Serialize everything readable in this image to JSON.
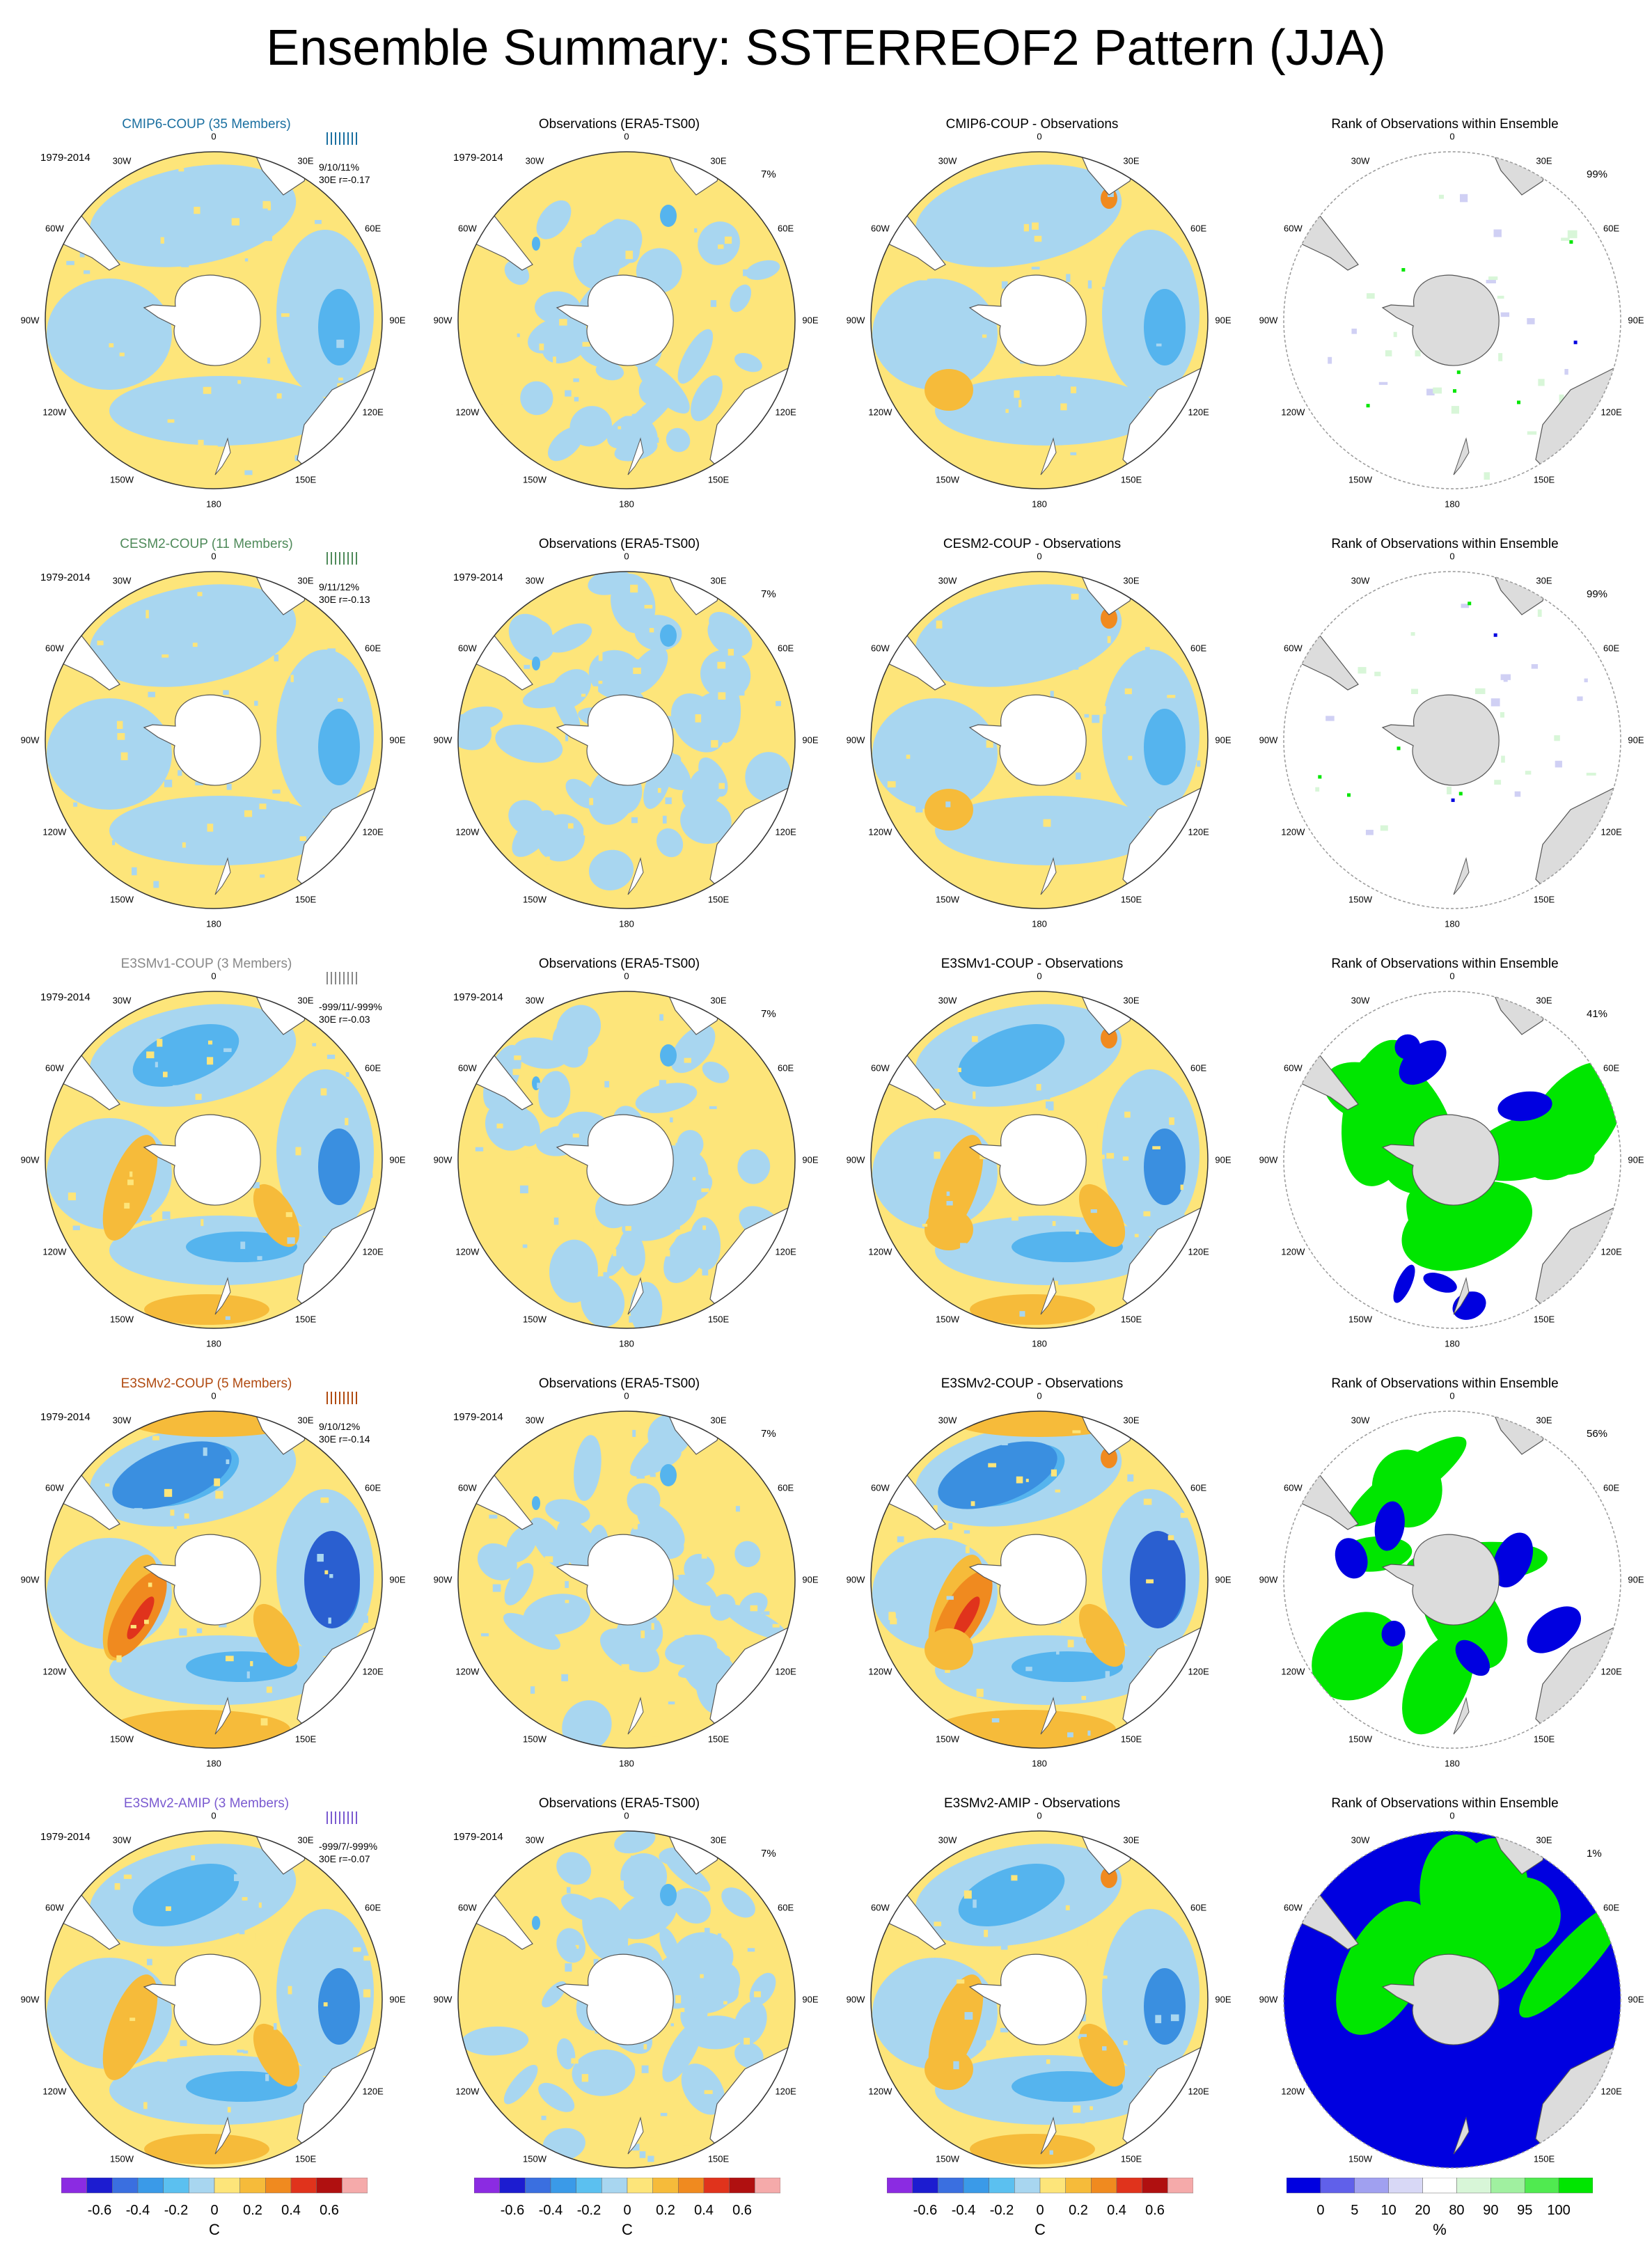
{
  "title": "Ensemble Summary: SSTERREOF2 Pattern (JJA)",
  "colors": {
    "yellow": "#fde57a",
    "light_blue": "#a8d6f0",
    "blue": "#55b4ee",
    "mid_blue": "#3a8fe0",
    "dark_blue": "#2a5fd0",
    "orange": "#f6bb3a",
    "dark_orange": "#f08a1f",
    "red": "#e0331c",
    "land": "#ffffff",
    "land_grey": "#dcdcdc",
    "rank_green": "#00e600",
    "rank_blue": "#0000e0",
    "rank_pale": "#d0d0f4"
  },
  "longitude_labels": [
    "0",
    "30E",
    "60E",
    "90E",
    "120E",
    "150E",
    "180",
    "150W",
    "120W",
    "90W",
    "60W",
    "30W"
  ],
  "rows": [
    {
      "model": "CMIP6-COUP (35 Members)",
      "model_color": "#1a6fa0",
      "period": "1979-2014",
      "stats1": "9/10/11%",
      "stats2": "30E    r=-0.17",
      "obs_title": "Observations (ERA5-TS00)",
      "obs_pct": "7%",
      "diff_title": "CMIP6-COUP - Observations",
      "rank_title": "Rank of Observations within Ensemble",
      "rank_pct": "99%",
      "rank_style": "sparse",
      "intensity": 1
    },
    {
      "model": "CESM2-COUP (11 Members)",
      "model_color": "#4f8a5a",
      "period": "1979-2014",
      "stats1": "9/11/12%",
      "stats2": "30E    r=-0.13",
      "obs_title": "Observations (ERA5-TS00)",
      "obs_pct": "7%",
      "diff_title": "CESM2-COUP - Observations",
      "rank_title": "Rank of Observations within Ensemble",
      "rank_pct": "99%",
      "rank_style": "sparse",
      "intensity": 1
    },
    {
      "model": "E3SMv1-COUP (3 Members)",
      "model_color": "#888888",
      "period": "1979-2014",
      "stats1": "-999/11/-999%",
      "stats2": "30E r=-0.03",
      "obs_title": "Observations (ERA5-TS00)",
      "obs_pct": "7%",
      "diff_title": "E3SMv1-COUP - Observations",
      "rank_title": "Rank of Observations within Ensemble",
      "rank_pct": "41%",
      "rank_style": "green",
      "intensity": 2
    },
    {
      "model": "E3SMv2-COUP (5 Members)",
      "model_color": "#b04a10",
      "period": "1979-2014",
      "stats1": "9/10/12%",
      "stats2": "30E    r=-0.14",
      "obs_title": "Observations (ERA5-TS00)",
      "obs_pct": "7%",
      "diff_title": "E3SMv2-COUP - Observations",
      "rank_title": "Rank of Observations within Ensemble",
      "rank_pct": "56%",
      "rank_style": "mixed",
      "intensity": 3
    },
    {
      "model": "E3SMv2-AMIP (3 Members)",
      "model_color": "#7a5ad0",
      "period": "1979-2014",
      "stats1": "-999/7/-999%",
      "stats2": "30E    r=-0.07",
      "obs_title": "Observations (ERA5-TS00)",
      "obs_pct": "7%",
      "diff_title": "E3SMv2-AMIP - Observations",
      "rank_title": "Rank of Observations within Ensemble",
      "rank_pct": "1%",
      "rank_style": "blue",
      "intensity": 2
    }
  ],
  "colorbar_sst": {
    "unit": "C",
    "labels": [
      "-0.6",
      "-0.4",
      "-0.2",
      "0",
      "0.2",
      "0.4",
      "0.6"
    ],
    "colors": [
      "#8b2be2",
      "#1c1cd0",
      "#3a6fe0",
      "#3a9ae8",
      "#5bc0f0",
      "#a8d6f0",
      "#fde57a",
      "#f6bb3a",
      "#f08a1f",
      "#e0331c",
      "#b01010",
      "#f5aaaa"
    ]
  },
  "colorbar_rank": {
    "unit": "%",
    "labels": [
      "0",
      "5",
      "10",
      "20",
      "80",
      "90",
      "95",
      "100"
    ],
    "colors": [
      "#0000e0",
      "#6060ea",
      "#a0a0f0",
      "#d8d8f6",
      "#ffffff",
      "#d8f6d8",
      "#a0f0a0",
      "#50ea50",
      "#00e600"
    ]
  }
}
